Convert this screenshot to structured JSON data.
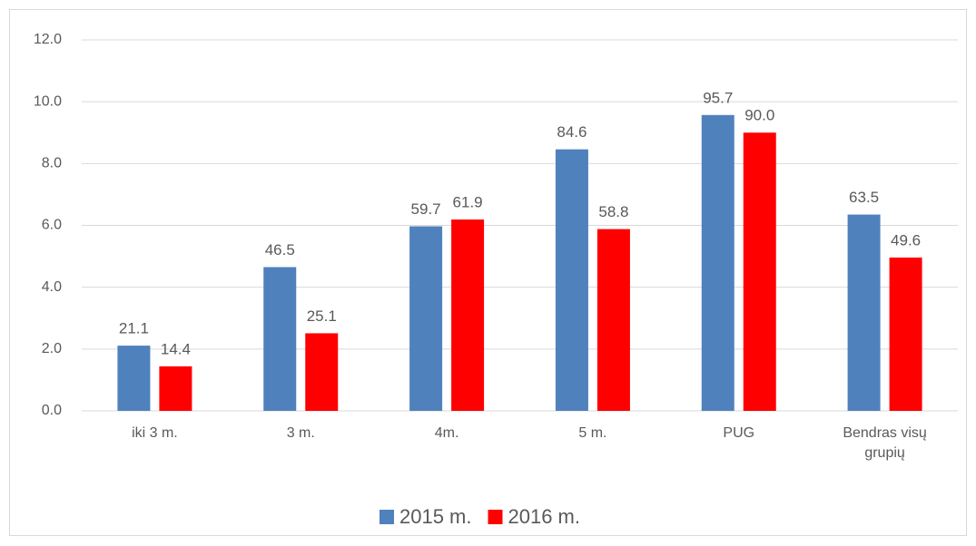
{
  "chart_data": {
    "type": "bar",
    "categories": [
      "iki 3 m.",
      "3 m.",
      "4m.",
      "5 m.",
      "PUG",
      "Bendras visų grupių"
    ],
    "series": [
      {
        "name": "2015 m.",
        "color": "#4f81bd",
        "values": [
          2.11,
          4.65,
          5.97,
          8.46,
          9.57,
          6.35
        ],
        "value_labels": [
          "21.1",
          "46.5",
          "59.7",
          "84.6",
          "95.7",
          "63.5"
        ]
      },
      {
        "name": "2016 m.",
        "color": "#ff0000",
        "values": [
          1.44,
          2.51,
          6.19,
          5.88,
          9.0,
          4.96
        ],
        "value_labels": [
          "14.4",
          "25.1",
          "61.9",
          "58.8",
          "90.0",
          "49.6"
        ]
      }
    ],
    "ylim": [
      0,
      12
    ],
    "yticks": [
      {
        "value": 0,
        "label": "0.0"
      },
      {
        "value": 2,
        "label": "2.0"
      },
      {
        "value": 4,
        "label": "4.0"
      },
      {
        "value": 6,
        "label": "6.0"
      },
      {
        "value": 8,
        "label": "8.0"
      },
      {
        "value": 10,
        "label": "10.0"
      },
      {
        "value": 12,
        "label": "12.0"
      }
    ],
    "grid": true,
    "legend": "bottom"
  }
}
